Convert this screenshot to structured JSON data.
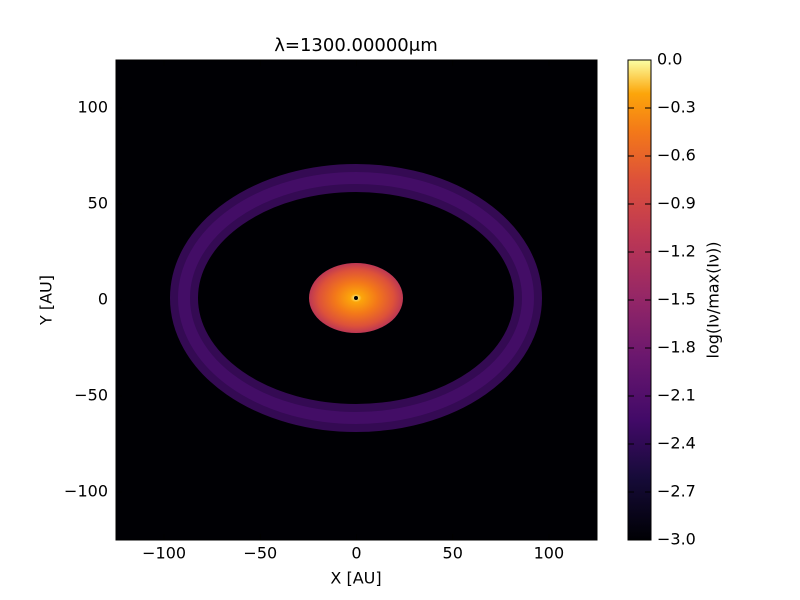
{
  "chart_data": {
    "type": "heatmap",
    "title": "λ=1300.00000μm",
    "x_label": "X [AU]",
    "y_label": "Y [AU]",
    "colorbar_label": "log(Iν/max(Iν))",
    "xlim": [
      -125,
      125
    ],
    "ylim": [
      -125,
      125
    ],
    "xticks": [
      {
        "value": -100,
        "label": "−100"
      },
      {
        "value": -50,
        "label": "−50"
      },
      0,
      50,
      100
    ],
    "yticks": [
      {
        "value": -100,
        "label": "−100"
      },
      {
        "value": -50,
        "label": "−50"
      },
      0,
      50,
      100
    ],
    "clim": [
      -3,
      0
    ],
    "cticks": [
      {
        "value": 0,
        "label": "0.0"
      },
      {
        "value": -0.3,
        "label": "−0.3"
      },
      {
        "value": -0.6,
        "label": "−0.6"
      },
      {
        "value": -0.9,
        "label": "−0.9"
      },
      {
        "value": -1.2,
        "label": "−1.2"
      },
      {
        "value": -1.5,
        "label": "−1.5"
      },
      {
        "value": -1.8,
        "label": "−1.8"
      },
      {
        "value": -2.1,
        "label": "−2.1"
      },
      {
        "value": -2.4,
        "label": "−2.4"
      },
      {
        "value": -2.7,
        "label": "−2.7"
      },
      {
        "value": -3,
        "label": "−3.0"
      }
    ],
    "colormap": "inferno"
  }
}
